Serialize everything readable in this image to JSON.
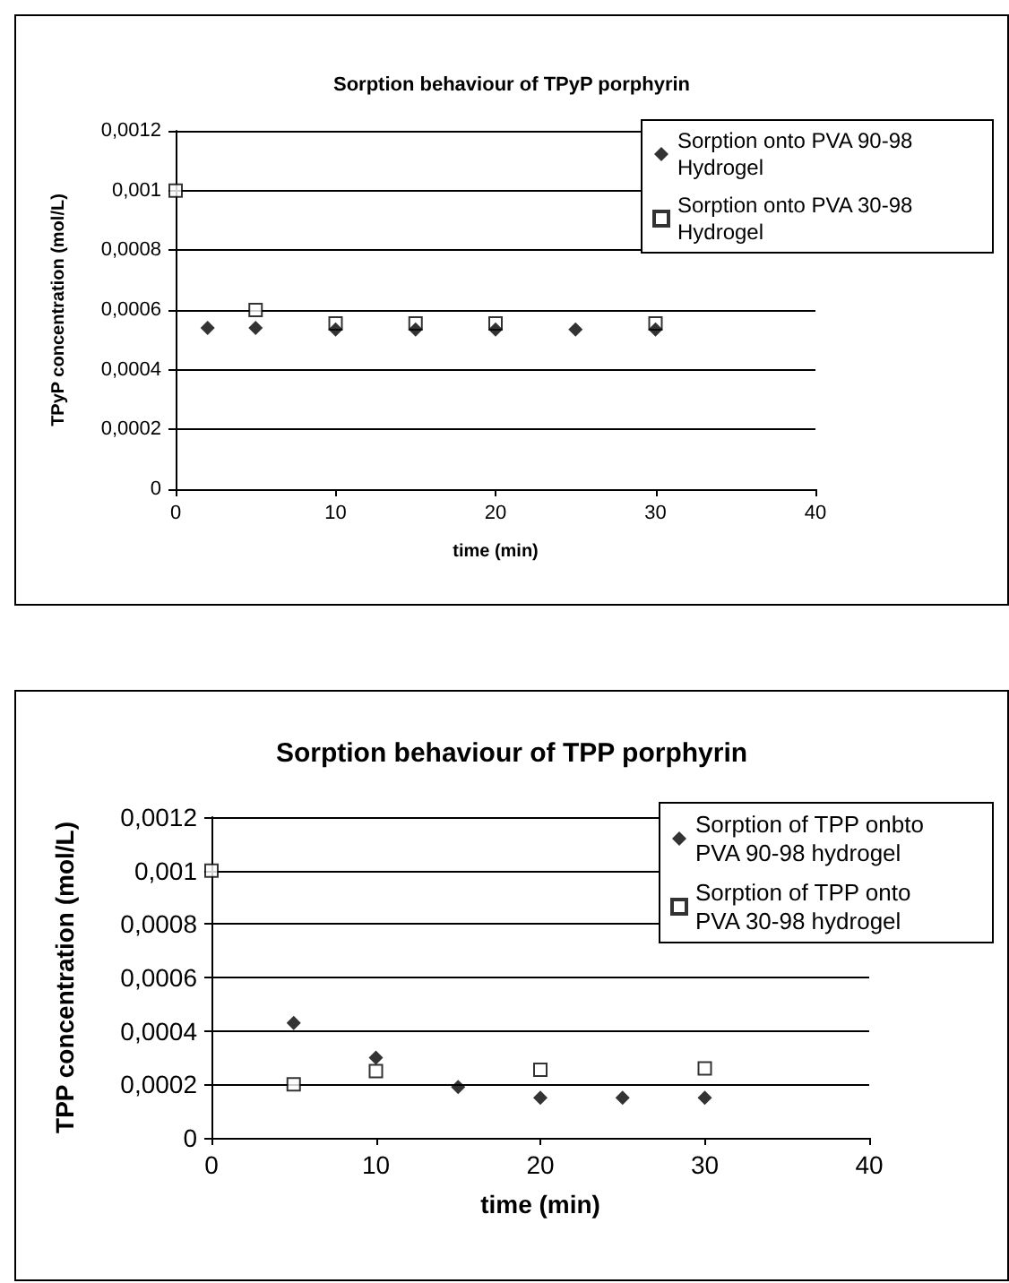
{
  "chart_data": [
    {
      "type": "scatter",
      "title": "Sorption behaviour of TPyP porphyrin",
      "xlabel": "time (min)",
      "ylabel": "TPyP concentration (mol/L)",
      "series": [
        {
          "name": "Sorption onto PVA 90-98 Hydrogel",
          "color": "#000000",
          "marker": "diamond",
          "x": [
            2,
            5,
            10,
            15,
            20,
            25,
            30
          ],
          "values": [
            0.00054,
            0.00054,
            0.000535,
            0.000535,
            0.000535,
            0.000535,
            0.000535
          ]
        },
        {
          "name": "Sorption onto PVA 30-98 Hydrogel",
          "color": "#000000",
          "marker": "square",
          "x": [
            0,
            5,
            10,
            15,
            20,
            30
          ],
          "values": [
            0.001,
            0.0006,
            0.000555,
            0.000555,
            0.000555,
            0.000555
          ]
        }
      ],
      "xlim": [
        0,
        40
      ],
      "xticks": [
        0,
        10,
        20,
        30,
        40
      ],
      "ylim": [
        0,
        0.0012
      ],
      "yticks": [
        0,
        {
          "value": 0.0002,
          "label": "0,0002"
        },
        {
          "value": 0.0004,
          "label": "0,0004"
        },
        {
          "value": 0.0006,
          "label": "0,0006"
        },
        {
          "value": 0.0008,
          "label": "0,0008"
        },
        {
          "value": 0.001,
          "label": "0,001"
        },
        {
          "value": 0.0012,
          "label": "0,0012"
        }
      ],
      "grid": "y",
      "legend": "top right"
    },
    {
      "type": "scatter",
      "title": "Sorption behaviour of TPP porphyrin",
      "xlabel": "time (min)",
      "ylabel": "TPP concentration (mol/L)",
      "series": [
        {
          "name": "Sorption of TPP onbto PVA 90-98 hydrogel",
          "color": "#000000",
          "marker": "diamond",
          "x": [
            5,
            10,
            15,
            20,
            25,
            30
          ],
          "values": [
            0.00043,
            0.0003,
            0.00019,
            0.00015,
            0.00015,
            0.00015
          ]
        },
        {
          "name": "Sorption of TPP onto PVA 30-98 hydrogel",
          "color": "#000000",
          "marker": "square",
          "x": [
            0,
            5,
            10,
            20,
            30
          ],
          "values": [
            0.001,
            0.0002,
            0.00025,
            0.000255,
            0.00026
          ]
        }
      ],
      "xlim": [
        0,
        40
      ],
      "xticks": [
        0,
        10,
        20,
        30,
        40
      ],
      "ylim": [
        0,
        0.0012
      ],
      "yticks": [
        0,
        {
          "value": 0.0002,
          "label": "0,0002"
        },
        {
          "value": 0.0004,
          "label": "0,0004"
        },
        {
          "value": 0.0006,
          "label": "0,0006"
        },
        {
          "value": 0.0008,
          "label": "0,0008"
        },
        {
          "value": 0.001,
          "label": "0,001"
        },
        {
          "value": 0.0012,
          "label": "0,0012"
        }
      ],
      "grid": "y",
      "legend": "top right"
    }
  ]
}
